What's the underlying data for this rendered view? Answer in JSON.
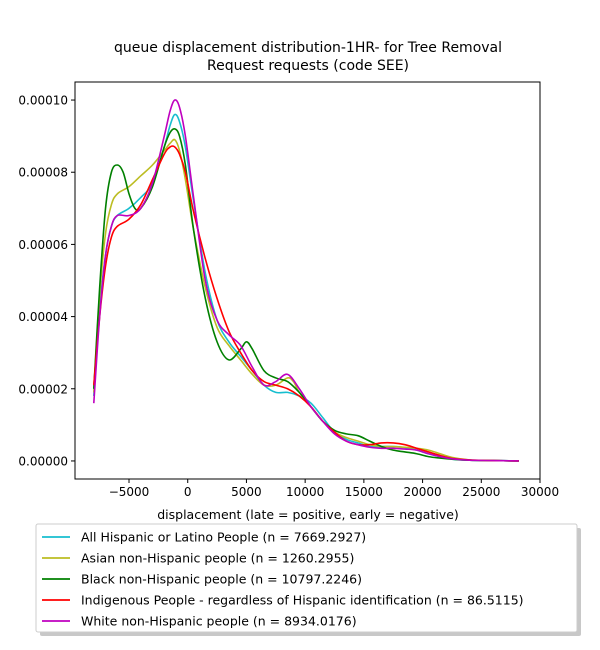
{
  "chart_data": {
    "type": "line",
    "title": "queue displacement distribution-1HR-  for Tree Removal Request  requests (code SEE)",
    "title_lines": [
      "queue displacement distribution-1HR-  for Tree Removal",
      "Request  requests (code SEE)"
    ],
    "xlabel": "displacement (late = positive, early = negative)",
    "ylabel": "",
    "xlim": [
      -9600,
      30000
    ],
    "ylim": [
      -5e-06,
      0.000105
    ],
    "x_ticks": [
      -5000,
      0,
      5000,
      10000,
      15000,
      20000,
      25000,
      30000
    ],
    "x_tick_labels": [
      "−5000",
      "0",
      "5000",
      "10000",
      "15000",
      "20000",
      "25000",
      "30000"
    ],
    "y_ticks": [
      0,
      2e-05,
      4e-05,
      6e-05,
      8e-05,
      0.0001
    ],
    "y_tick_labels": [
      "0.00000",
      "0.00002",
      "0.00004",
      "0.00006",
      "0.00008",
      "0.00010"
    ],
    "grid": false,
    "legend_position": "below-plot",
    "series": [
      {
        "name": "All Hispanic or Latino People (n = 7669.2927)",
        "color": "#17becf",
        "points": [
          [
            -8000,
            1.8e-05
          ],
          [
            -7500,
            4.2e-05
          ],
          [
            -7000,
            5.7e-05
          ],
          [
            -6500,
            6.5e-05
          ],
          [
            -6000,
            6.8e-05
          ],
          [
            -5000,
            7e-05
          ],
          [
            -4000,
            7.3e-05
          ],
          [
            -3000,
            7.7e-05
          ],
          [
            -2000,
            8.7e-05
          ],
          [
            -1500,
            9.3e-05
          ],
          [
            -1100,
            9.6e-05
          ],
          [
            -700,
            9.4e-05
          ],
          [
            -200,
            8.7e-05
          ],
          [
            500,
            7.2e-05
          ],
          [
            1500,
            5.2e-05
          ],
          [
            2500,
            3.9e-05
          ],
          [
            3500,
            3.3e-05
          ],
          [
            4500,
            2.9e-05
          ],
          [
            5500,
            2.5e-05
          ],
          [
            6500,
            2.1e-05
          ],
          [
            7500,
            1.9e-05
          ],
          [
            8500,
            1.9e-05
          ],
          [
            9500,
            1.8e-05
          ],
          [
            10500,
            1.6e-05
          ],
          [
            11500,
            1.2e-05
          ],
          [
            12500,
            8e-06
          ],
          [
            13500,
            6e-06
          ],
          [
            14500,
            5e-06
          ],
          [
            15500,
            4e-06
          ],
          [
            16500,
            4e-06
          ],
          [
            17500,
            4e-06
          ],
          [
            18500,
            3.7e-06
          ],
          [
            19500,
            3e-06
          ],
          [
            20500,
            2e-06
          ],
          [
            21500,
            1.2e-06
          ],
          [
            22500,
            5e-07
          ],
          [
            24000,
            2e-07
          ],
          [
            26000,
            1e-07
          ],
          [
            28200,
            0
          ]
        ]
      },
      {
        "name": "Asian non-Hispanic people (n = 1260.2955)",
        "color": "#bcbd22",
        "points": [
          [
            -8000,
            1.9e-05
          ],
          [
            -7500,
            4.6e-05
          ],
          [
            -7000,
            6.3e-05
          ],
          [
            -6500,
            7.1e-05
          ],
          [
            -6000,
            7.4e-05
          ],
          [
            -5000,
            7.6e-05
          ],
          [
            -4000,
            7.9e-05
          ],
          [
            -3000,
            8.2e-05
          ],
          [
            -2000,
            8.6e-05
          ],
          [
            -1500,
            8.8e-05
          ],
          [
            -1100,
            8.9e-05
          ],
          [
            -700,
            8.6e-05
          ],
          [
            -200,
            7.8e-05
          ],
          [
            500,
            6.4e-05
          ],
          [
            1500,
            4.8e-05
          ],
          [
            2500,
            3.7e-05
          ],
          [
            3500,
            3.2e-05
          ],
          [
            4500,
            2.8e-05
          ],
          [
            5500,
            2.4e-05
          ],
          [
            6500,
            2.1e-05
          ],
          [
            7500,
            2.1e-05
          ],
          [
            8500,
            2.3e-05
          ],
          [
            9000,
            2.2e-05
          ],
          [
            9500,
            1.9e-05
          ],
          [
            10500,
            1.5e-05
          ],
          [
            11500,
            1.1e-05
          ],
          [
            12500,
            8e-06
          ],
          [
            13500,
            6.5e-06
          ],
          [
            14500,
            5.5e-06
          ],
          [
            15500,
            4.5e-06
          ],
          [
            16500,
            4e-06
          ],
          [
            17500,
            4e-06
          ],
          [
            18500,
            3.8e-06
          ],
          [
            19500,
            3.5e-06
          ],
          [
            20500,
            3e-06
          ],
          [
            21500,
            2e-06
          ],
          [
            22500,
            1e-06
          ],
          [
            24000,
            3e-07
          ],
          [
            26000,
            1e-07
          ],
          [
            28200,
            0
          ]
        ]
      },
      {
        "name": "Black non-Hispanic people (n = 10797.2246)",
        "color": "#008000",
        "points": [
          [
            -8000,
            2e-05
          ],
          [
            -7500,
            4.8e-05
          ],
          [
            -7000,
            7e-05
          ],
          [
            -6500,
            8e-05
          ],
          [
            -6000,
            8.2e-05
          ],
          [
            -5500,
            8e-05
          ],
          [
            -5000,
            7.4e-05
          ],
          [
            -4500,
            7e-05
          ],
          [
            -4000,
            7e-05
          ],
          [
            -3000,
            7.6e-05
          ],
          [
            -2000,
            8.7e-05
          ],
          [
            -1500,
            9.1e-05
          ],
          [
            -1100,
            9.2e-05
          ],
          [
            -700,
            9e-05
          ],
          [
            -200,
            8.2e-05
          ],
          [
            500,
            6.4e-05
          ],
          [
            1500,
            4.5e-05
          ],
          [
            2500,
            3.3e-05
          ],
          [
            3500,
            2.8e-05
          ],
          [
            4500,
            3.1e-05
          ],
          [
            5000,
            3.3e-05
          ],
          [
            5500,
            3.1e-05
          ],
          [
            6500,
            2.5e-05
          ],
          [
            7500,
            2.3e-05
          ],
          [
            8500,
            2.2e-05
          ],
          [
            9500,
            1.9e-05
          ],
          [
            10500,
            1.5e-05
          ],
          [
            11500,
            1.1e-05
          ],
          [
            12500,
            8.5e-06
          ],
          [
            13500,
            7.5e-06
          ],
          [
            14500,
            7e-06
          ],
          [
            15500,
            5.5e-06
          ],
          [
            16500,
            4e-06
          ],
          [
            17500,
            3e-06
          ],
          [
            18500,
            2.5e-06
          ],
          [
            19500,
            2e-06
          ],
          [
            20500,
            1.2e-06
          ],
          [
            21500,
            8e-07
          ],
          [
            22500,
            5e-07
          ],
          [
            24000,
            2e-07
          ],
          [
            26000,
            1e-07
          ],
          [
            28200,
            0
          ]
        ]
      },
      {
        "name": "Indigenous People - regardless of Hispanic identification (n = 86.5115)",
        "color": "#ff0000",
        "points": [
          [
            -8000,
            2.1e-05
          ],
          [
            -7500,
            4e-05
          ],
          [
            -7000,
            5.4e-05
          ],
          [
            -6500,
            6.2e-05
          ],
          [
            -6000,
            6.5e-05
          ],
          [
            -5000,
            6.7e-05
          ],
          [
            -4000,
            7.1e-05
          ],
          [
            -3000,
            7.8e-05
          ],
          [
            -2000,
            8.5e-05
          ],
          [
            -1500,
            8.7e-05
          ],
          [
            -1100,
            8.7e-05
          ],
          [
            -700,
            8.5e-05
          ],
          [
            -200,
            8e-05
          ],
          [
            500,
            6.9e-05
          ],
          [
            1500,
            5.6e-05
          ],
          [
            2500,
            4.5e-05
          ],
          [
            3500,
            3.6e-05
          ],
          [
            4500,
            3e-05
          ],
          [
            5500,
            2.5e-05
          ],
          [
            6500,
            2.2e-05
          ],
          [
            7500,
            2.1e-05
          ],
          [
            8500,
            2e-05
          ],
          [
            9500,
            1.8e-05
          ],
          [
            10500,
            1.5e-05
          ],
          [
            11500,
            1.1e-05
          ],
          [
            12500,
            8e-06
          ],
          [
            13500,
            5.5e-06
          ],
          [
            14500,
            4.5e-06
          ],
          [
            15500,
            4.5e-06
          ],
          [
            16500,
            5e-06
          ],
          [
            17500,
            5e-06
          ],
          [
            18500,
            4.5e-06
          ],
          [
            19500,
            3.5e-06
          ],
          [
            20500,
            2.5e-06
          ],
          [
            21500,
            1.5e-06
          ],
          [
            22500,
            7e-07
          ],
          [
            24000,
            3e-07
          ],
          [
            26000,
            1e-07
          ],
          [
            28200,
            0
          ]
        ]
      },
      {
        "name": "White non-Hispanic people (n = 8934.0176)",
        "color": "#bf00bf",
        "points": [
          [
            -8000,
            1.6e-05
          ],
          [
            -7500,
            4e-05
          ],
          [
            -7000,
            5.7e-05
          ],
          [
            -6500,
            6.5e-05
          ],
          [
            -6000,
            6.8e-05
          ],
          [
            -5000,
            6.8e-05
          ],
          [
            -4000,
            7e-05
          ],
          [
            -3000,
            7.7e-05
          ],
          [
            -2000,
            9e-05
          ],
          [
            -1500,
            9.7e-05
          ],
          [
            -1100,
            0.0001
          ],
          [
            -700,
            9.8e-05
          ],
          [
            -200,
            9e-05
          ],
          [
            500,
            7.3e-05
          ],
          [
            1500,
            5e-05
          ],
          [
            2500,
            3.9e-05
          ],
          [
            3500,
            3.5e-05
          ],
          [
            4500,
            3.2e-05
          ],
          [
            5500,
            2.6e-05
          ],
          [
            6500,
            2.1e-05
          ],
          [
            7500,
            2.2e-05
          ],
          [
            8500,
            2.4e-05
          ],
          [
            9500,
            2e-05
          ],
          [
            10500,
            1.5e-05
          ],
          [
            11500,
            1.1e-05
          ],
          [
            12500,
            7.5e-06
          ],
          [
            13500,
            5.5e-06
          ],
          [
            14500,
            4.5e-06
          ],
          [
            15500,
            3.8e-06
          ],
          [
            16500,
            3.5e-06
          ],
          [
            17500,
            3.5e-06
          ],
          [
            18500,
            3.3e-06
          ],
          [
            19500,
            3e-06
          ],
          [
            20500,
            2e-06
          ],
          [
            21500,
            1.2e-06
          ],
          [
            22500,
            6e-07
          ],
          [
            24000,
            2e-07
          ],
          [
            26000,
            1e-07
          ],
          [
            28200,
            0
          ]
        ]
      }
    ]
  }
}
